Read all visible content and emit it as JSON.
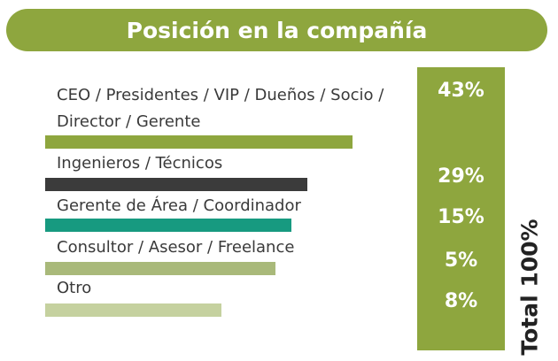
{
  "header": {
    "title": "Posición en la compañía"
  },
  "total_label": "Total 100%",
  "colors": {
    "accent": "#8ea63e",
    "bars": [
      "#8ea63e",
      "#3b3b3b",
      "#179a80",
      "#a9b97a",
      "#c5d19f"
    ]
  },
  "chart_data": {
    "type": "bar",
    "orientation": "horizontal",
    "title": "Posición en la compañía",
    "categories": [
      "CEO / Presidentes / VIP / Dueños / Socio / Director / Gerente",
      "Ingenieros / Técnicos",
      "Gerente de Área / Coordinador",
      "Consultor / Asesor / Freelance",
      "Otro"
    ],
    "label_lines": [
      [
        "CEO / Presidentes / VIP / Dueños / Socio /",
        "Director / Gerente"
      ],
      [
        "Ingenieros / Técnicos"
      ],
      [
        "Gerente de Área / Coordinador"
      ],
      [
        "Consultor / Asesor / Freelance"
      ],
      [
        "Otro"
      ]
    ],
    "values": [
      43,
      29,
      15,
      5,
      8
    ],
    "data_labels": [
      "43%",
      "29%",
      "15%",
      "5%",
      "8%"
    ],
    "xlim": [
      0,
      100
    ],
    "grid": false,
    "legend": "none"
  }
}
